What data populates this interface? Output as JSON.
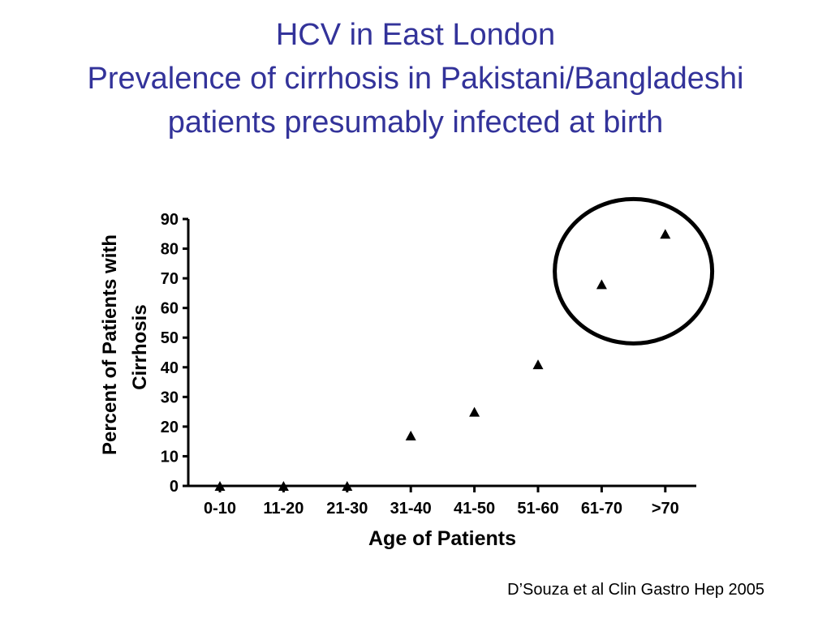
{
  "title": {
    "line1": "HCV in East London",
    "line2": "Prevalence of cirrhosis in Pakistani/Bangladeshi",
    "line3": "patients presumably infected at birth"
  },
  "colors": {
    "title": "#33339a",
    "axis": "#000000",
    "marker": "#000000",
    "highlight_circle": "#000000"
  },
  "chart_data": {
    "type": "scatter",
    "marker": "triangle",
    "categories": [
      "0-10",
      "11-20",
      "21-30",
      "31-40",
      "41-50",
      "51-60",
      "61-70",
      ">70"
    ],
    "values": [
      0,
      0,
      0,
      17,
      25,
      41,
      68,
      85
    ],
    "xlabel": "Age of Patients",
    "ylabel_line1": "Percent of Patients with",
    "ylabel_line2": "Cirrhosis",
    "ylim": [
      0,
      90
    ],
    "yticks": [
      0,
      10,
      20,
      30,
      40,
      50,
      60,
      70,
      80,
      90
    ],
    "grid": false,
    "highlighted_categories": [
      "61-70",
      ">70"
    ]
  },
  "citation": "D’Souza et al Clin Gastro Hep 2005"
}
